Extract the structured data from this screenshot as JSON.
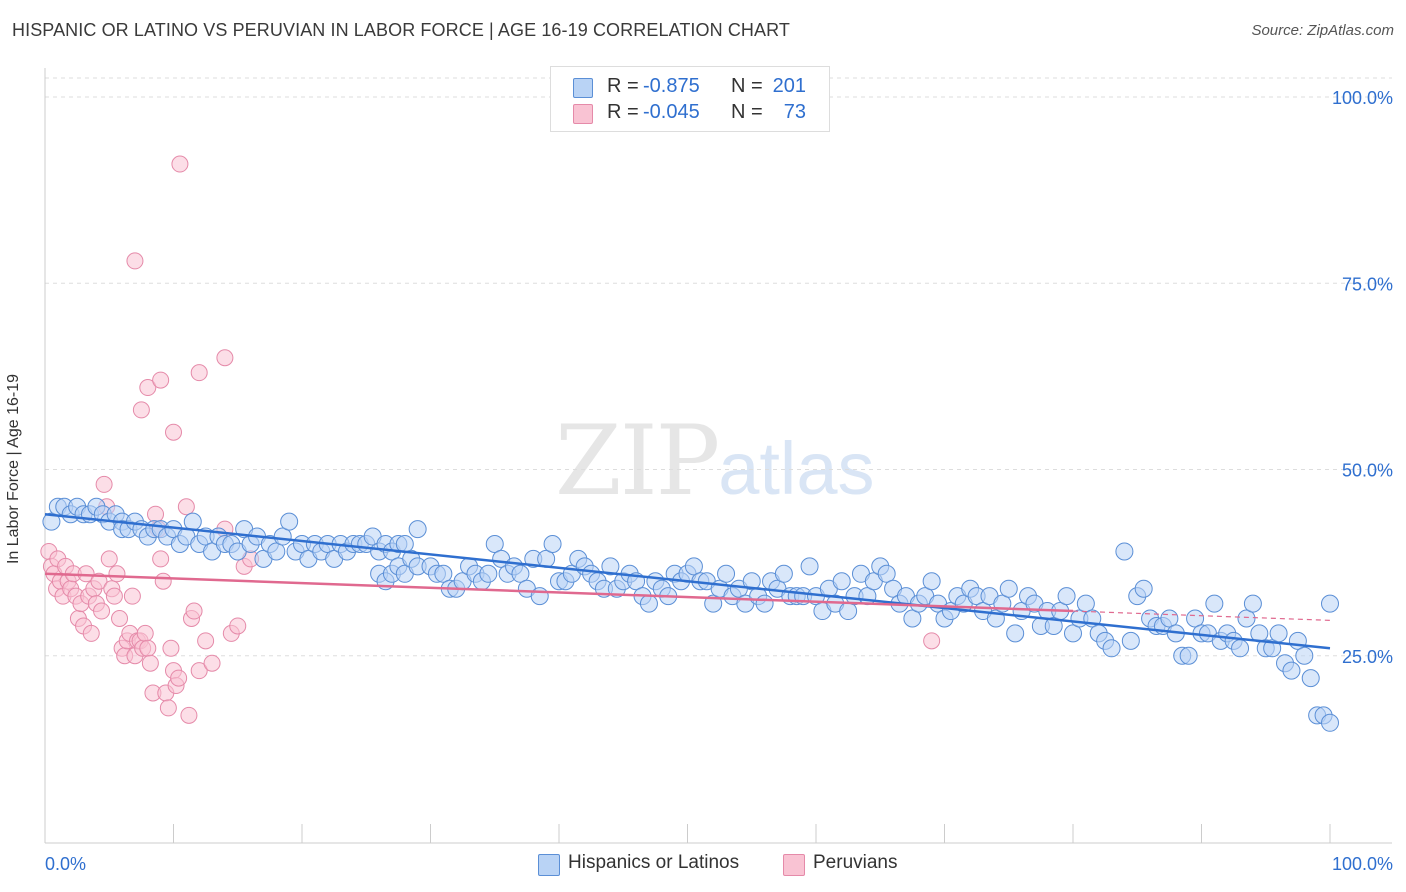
{
  "header": {
    "title": "HISPANIC OR LATINO VS PERUVIAN IN LABOR FORCE | AGE 16-19 CORRELATION CHART",
    "source": "Source: ZipAtlas.com"
  },
  "watermark": {
    "zip": "ZIP",
    "atlas": "atlas"
  },
  "legend_top": {
    "rows": [
      {
        "r_label": "R =",
        "r_value": "-0.875",
        "n_label": "N =",
        "n_value": "201"
      },
      {
        "r_label": "R =",
        "r_value": "-0.045",
        "n_label": "N =",
        "n_value": "73"
      }
    ]
  },
  "legend_bottom": {
    "items": [
      "Hispanics or Latinos",
      "Peruvians"
    ]
  },
  "colors": {
    "blue_fill": "#b9d3f5",
    "blue_stroke": "#5b8fd6",
    "blue_line": "#2f6fcf",
    "pink_fill": "#f9c3d3",
    "pink_stroke": "#e58aa9",
    "pink_line": "#e0698f",
    "tick_label": "#2f6fcf",
    "grid": "#dddddd"
  },
  "chart_data": {
    "type": "scatter",
    "title": "HISPANIC OR LATINO VS PERUVIAN IN LABOR FORCE | AGE 16-19 CORRELATION CHART",
    "xlabel": "",
    "ylabel": "In Labor Force | Age 16-19",
    "xlim": [
      0,
      100
    ],
    "ylim": [
      0,
      102
    ],
    "x_tick_labels": [
      "0.0%",
      "100.0%"
    ],
    "y_ticks": [
      25,
      50,
      75,
      100
    ],
    "y_tick_labels": [
      "25.0%",
      "50.0%",
      "75.0%",
      "100.0%"
    ],
    "grid": true,
    "legend_position": "top-center",
    "series": [
      {
        "name": "Hispanics or Latinos",
        "r": -0.875,
        "n": 201,
        "trend": {
          "x": [
            0,
            100
          ],
          "y": [
            44.0,
            26.0
          ]
        },
        "points": [
          [
            0.5,
            43
          ],
          [
            1,
            45
          ],
          [
            1.5,
            45
          ],
          [
            2,
            44
          ],
          [
            2.5,
            45
          ],
          [
            3,
            44
          ],
          [
            3.5,
            44
          ],
          [
            4,
            45
          ],
          [
            4.5,
            44
          ],
          [
            5,
            43
          ],
          [
            5.5,
            44
          ],
          [
            6,
            43
          ],
          [
            6,
            42
          ],
          [
            6.5,
            42
          ],
          [
            7,
            43
          ],
          [
            7.5,
            42
          ],
          [
            8,
            41
          ],
          [
            8.5,
            42
          ],
          [
            9,
            42
          ],
          [
            9.5,
            41
          ],
          [
            10,
            42
          ],
          [
            10.5,
            40
          ],
          [
            11,
            41
          ],
          [
            11.5,
            43
          ],
          [
            12,
            40
          ],
          [
            12.5,
            41
          ],
          [
            13,
            39
          ],
          [
            13.5,
            41
          ],
          [
            14,
            40
          ],
          [
            14.5,
            40
          ],
          [
            15,
            39
          ],
          [
            15.5,
            42
          ],
          [
            16,
            40
          ],
          [
            16.5,
            41
          ],
          [
            17,
            38
          ],
          [
            17.5,
            40
          ],
          [
            18,
            39
          ],
          [
            18.5,
            41
          ],
          [
            19,
            43
          ],
          [
            19.5,
            39
          ],
          [
            20,
            40
          ],
          [
            20.5,
            38
          ],
          [
            21,
            40
          ],
          [
            21.5,
            39
          ],
          [
            22,
            40
          ],
          [
            22.5,
            38
          ],
          [
            23,
            40
          ],
          [
            23.5,
            39
          ],
          [
            24,
            40
          ],
          [
            24.5,
            40
          ],
          [
            25,
            40
          ],
          [
            25.5,
            41
          ],
          [
            26,
            39
          ],
          [
            26.5,
            40
          ],
          [
            27,
            39
          ],
          [
            27.5,
            40
          ],
          [
            28,
            40
          ],
          [
            29,
            42
          ],
          [
            26,
            36
          ],
          [
            26.5,
            35
          ],
          [
            27,
            36
          ],
          [
            27.5,
            37
          ],
          [
            28,
            36
          ],
          [
            28.5,
            38
          ],
          [
            29,
            37
          ],
          [
            30,
            37
          ],
          [
            30.5,
            36
          ],
          [
            31,
            36
          ],
          [
            31.5,
            34
          ],
          [
            32,
            34
          ],
          [
            32.5,
            35
          ],
          [
            33,
            37
          ],
          [
            33.5,
            36
          ],
          [
            34,
            35
          ],
          [
            34.5,
            36
          ],
          [
            35,
            40
          ],
          [
            35.5,
            38
          ],
          [
            36,
            36
          ],
          [
            36.5,
            37
          ],
          [
            37,
            36
          ],
          [
            37.5,
            34
          ],
          [
            38,
            38
          ],
          [
            38.5,
            33
          ],
          [
            39,
            38
          ],
          [
            39.5,
            40
          ],
          [
            40,
            35
          ],
          [
            40.5,
            35
          ],
          [
            41,
            36
          ],
          [
            41.5,
            38
          ],
          [
            42,
            37
          ],
          [
            42.5,
            36
          ],
          [
            43,
            35
          ],
          [
            43.5,
            34
          ],
          [
            44,
            37
          ],
          [
            44.5,
            34
          ],
          [
            45,
            35
          ],
          [
            45.5,
            36
          ],
          [
            46,
            35
          ],
          [
            46.5,
            33
          ],
          [
            47,
            32
          ],
          [
            47.5,
            35
          ],
          [
            48,
            34
          ],
          [
            48.5,
            33
          ],
          [
            49,
            36
          ],
          [
            49.5,
            35
          ],
          [
            50,
            36
          ],
          [
            50.5,
            37
          ],
          [
            51,
            35
          ],
          [
            51.5,
            35
          ],
          [
            52,
            32
          ],
          [
            52.5,
            34
          ],
          [
            53,
            36
          ],
          [
            53.5,
            33
          ],
          [
            54,
            34
          ],
          [
            54.5,
            32
          ],
          [
            55,
            35
          ],
          [
            55.5,
            33
          ],
          [
            56,
            32
          ],
          [
            56.5,
            35
          ],
          [
            57,
            34
          ],
          [
            57.5,
            36
          ],
          [
            58,
            33
          ],
          [
            58.5,
            33
          ],
          [
            59,
            33
          ],
          [
            59.5,
            37
          ],
          [
            60,
            33
          ],
          [
            60.5,
            31
          ],
          [
            61,
            34
          ],
          [
            61.5,
            32
          ],
          [
            62,
            35
          ],
          [
            62.5,
            31
          ],
          [
            63,
            33
          ],
          [
            63.5,
            36
          ],
          [
            64,
            33
          ],
          [
            64.5,
            35
          ],
          [
            65,
            37
          ],
          [
            65.5,
            36
          ],
          [
            66,
            34
          ],
          [
            66.5,
            32
          ],
          [
            67,
            33
          ],
          [
            67.5,
            30
          ],
          [
            68,
            32
          ],
          [
            68.5,
            33
          ],
          [
            69,
            35
          ],
          [
            69.5,
            32
          ],
          [
            70,
            30
          ],
          [
            70.5,
            31
          ],
          [
            71,
            33
          ],
          [
            71.5,
            32
          ],
          [
            72,
            34
          ],
          [
            72.5,
            33
          ],
          [
            73,
            31
          ],
          [
            73.5,
            33
          ],
          [
            74,
            30
          ],
          [
            74.5,
            32
          ],
          [
            75,
            34
          ],
          [
            75.5,
            28
          ],
          [
            76,
            31
          ],
          [
            76.5,
            33
          ],
          [
            77,
            32
          ],
          [
            77.5,
            29
          ],
          [
            78,
            31
          ],
          [
            78.5,
            29
          ],
          [
            79,
            31
          ],
          [
            79.5,
            33
          ],
          [
            80,
            28
          ],
          [
            80.5,
            30
          ],
          [
            81,
            32
          ],
          [
            81.5,
            30
          ],
          [
            82,
            28
          ],
          [
            82.5,
            27
          ],
          [
            83,
            26
          ],
          [
            84,
            39
          ],
          [
            84.5,
            27
          ],
          [
            85,
            33
          ],
          [
            85.5,
            34
          ],
          [
            86,
            30
          ],
          [
            86.5,
            29
          ],
          [
            87,
            29
          ],
          [
            87.5,
            30
          ],
          [
            88,
            28
          ],
          [
            88.5,
            25
          ],
          [
            89,
            25
          ],
          [
            89.5,
            30
          ],
          [
            90,
            28
          ],
          [
            90.5,
            28
          ],
          [
            91,
            32
          ],
          [
            91.5,
            27
          ],
          [
            92,
            28
          ],
          [
            92.5,
            27
          ],
          [
            93,
            26
          ],
          [
            93.5,
            30
          ],
          [
            94,
            32
          ],
          [
            94.5,
            28
          ],
          [
            95,
            26
          ],
          [
            95.5,
            26
          ],
          [
            96,
            28
          ],
          [
            96.5,
            24
          ],
          [
            97,
            23
          ],
          [
            97.5,
            27
          ],
          [
            98,
            25
          ],
          [
            98.5,
            22
          ],
          [
            99,
            17
          ],
          [
            99.5,
            17
          ],
          [
            100,
            16
          ],
          [
            100,
            32
          ]
        ]
      },
      {
        "name": "Peruvians",
        "r": -0.045,
        "n": 73,
        "trend": {
          "x": [
            0,
            80
          ],
          "y": [
            36.0,
            31.0
          ]
        },
        "points": [
          [
            0.3,
            39
          ],
          [
            0.5,
            37
          ],
          [
            0.7,
            36
          ],
          [
            0.9,
            34
          ],
          [
            1,
            38
          ],
          [
            1.2,
            35
          ],
          [
            1.4,
            33
          ],
          [
            1.6,
            37
          ],
          [
            1.8,
            35
          ],
          [
            2,
            34
          ],
          [
            2.2,
            36
          ],
          [
            2.4,
            33
          ],
          [
            2.6,
            30
          ],
          [
            2.8,
            32
          ],
          [
            3,
            29
          ],
          [
            3.2,
            36
          ],
          [
            3.4,
            33
          ],
          [
            3.6,
            28
          ],
          [
            3.8,
            34
          ],
          [
            4,
            32
          ],
          [
            4.2,
            35
          ],
          [
            4.4,
            31
          ],
          [
            4.6,
            48
          ],
          [
            4.8,
            45
          ],
          [
            5,
            38
          ],
          [
            5.2,
            34
          ],
          [
            5.4,
            33
          ],
          [
            5.6,
            36
          ],
          [
            5.8,
            30
          ],
          [
            6,
            26
          ],
          [
            6.2,
            25
          ],
          [
            6.4,
            27
          ],
          [
            6.6,
            28
          ],
          [
            6.8,
            33
          ],
          [
            7,
            25
          ],
          [
            7.2,
            27
          ],
          [
            7.4,
            27
          ],
          [
            7.6,
            26
          ],
          [
            7.8,
            28
          ],
          [
            8,
            26
          ],
          [
            8.2,
            24
          ],
          [
            8.4,
            20
          ],
          [
            8.6,
            44
          ],
          [
            8.8,
            42
          ],
          [
            9,
            38
          ],
          [
            9.2,
            35
          ],
          [
            9.4,
            20
          ],
          [
            9.6,
            18
          ],
          [
            9.8,
            26
          ],
          [
            10,
            23
          ],
          [
            10.2,
            21
          ],
          [
            10.4,
            22
          ],
          [
            11,
            45
          ],
          [
            11.2,
            17
          ],
          [
            11.4,
            30
          ],
          [
            11.6,
            31
          ],
          [
            12,
            23
          ],
          [
            12.5,
            27
          ],
          [
            13,
            24
          ],
          [
            14,
            42
          ],
          [
            14.5,
            28
          ],
          [
            15,
            29
          ],
          [
            7.5,
            58
          ],
          [
            8,
            61
          ],
          [
            9,
            62
          ],
          [
            10,
            55
          ],
          [
            10.5,
            91
          ],
          [
            7,
            78
          ],
          [
            12,
            63
          ],
          [
            14,
            65
          ],
          [
            15.5,
            37
          ],
          [
            16,
            38
          ],
          [
            69,
            27
          ]
        ]
      }
    ]
  }
}
